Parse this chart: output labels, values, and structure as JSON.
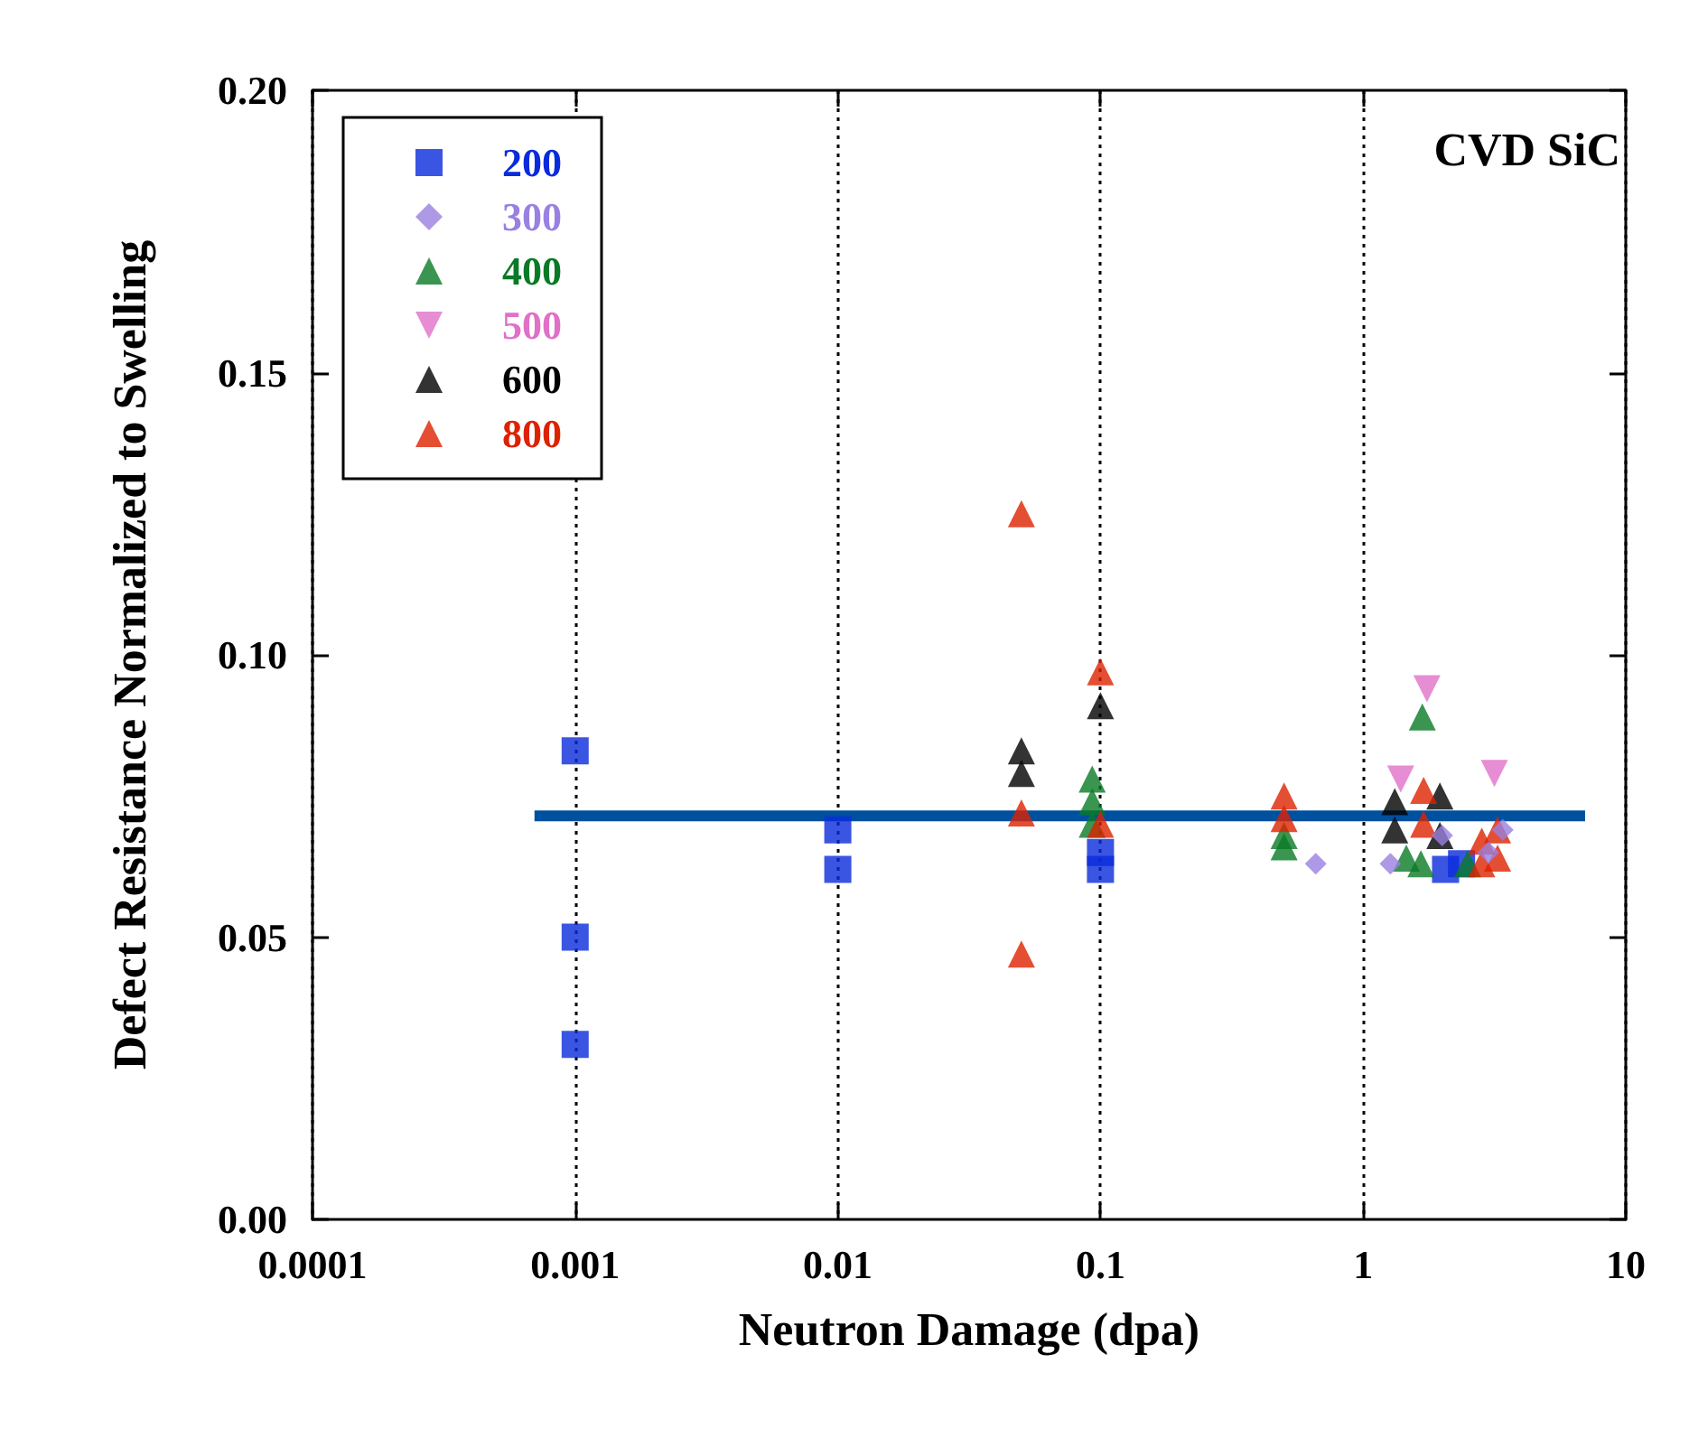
{
  "chart_data": {
    "type": "scatter",
    "xlabel": "Neutron Damage (dpa)",
    "ylabel": "Defect Resistance Normalized to Swelling",
    "annotations": [
      "CVD SiC"
    ],
    "log": "x",
    "grid": "x",
    "legend": "top left",
    "xlim": [
      0.0001,
      10
    ],
    "xticks": [
      0.0001,
      0.001,
      0.01,
      0.1,
      1,
      10
    ],
    "ylim": [
      0,
      0.2
    ],
    "yticks": [
      {
        "value": 0,
        "label": "0.00"
      },
      {
        "value": 0.05,
        "label": "0.05"
      },
      {
        "value": 0.1,
        "label": "0.10"
      },
      {
        "value": 0.15,
        "label": "0.15"
      },
      {
        "value": 0.2,
        "label": "0.20"
      }
    ],
    "series": [
      {
        "name": "200",
        "color": "#0a2bdc",
        "marker": "square",
        "x": [
          0.001,
          0.001,
          0.001,
          0.01,
          0.01,
          0.1,
          0.1,
          2.06,
          2.37
        ],
        "values": [
          0.083,
          0.05,
          0.031,
          0.069,
          0.062,
          0.065,
          0.062,
          0.062,
          0.063
        ]
      },
      {
        "name": "300",
        "color": "#9a80e0",
        "marker": "diamond",
        "x": [
          0.66,
          1.27,
          2.0,
          3.0,
          3.4
        ],
        "values": [
          0.063,
          0.063,
          0.068,
          0.065,
          0.069
        ]
      },
      {
        "name": "400",
        "color": "#097a26",
        "marker": "triangle",
        "x": [
          0.093,
          0.093,
          0.093,
          0.5,
          0.5,
          1.68,
          1.46,
          1.66,
          2.5
        ],
        "values": [
          0.078,
          0.074,
          0.07,
          0.068,
          0.066,
          0.089,
          0.064,
          0.063,
          0.063
        ]
      },
      {
        "name": "500",
        "color": "#e070c8",
        "marker": "triangle-down",
        "x": [
          1.75,
          1.39,
          3.16
        ],
        "values": [
          0.094,
          0.078,
          0.079
        ]
      },
      {
        "name": "600",
        "color": "#000000",
        "marker": "triangle",
        "x": [
          0.05,
          0.05,
          0.1,
          1.32,
          1.32,
          1.96,
          1.96
        ],
        "values": [
          0.083,
          0.079,
          0.091,
          0.074,
          0.069,
          0.075,
          0.068
        ]
      },
      {
        "name": "800",
        "color": "#dd2200",
        "marker": "triangle",
        "x": [
          0.05,
          0.05,
          0.05,
          0.1,
          0.1,
          0.5,
          0.5,
          1.7,
          1.7,
          2.83,
          2.83,
          3.25,
          3.25
        ],
        "values": [
          0.125,
          0.072,
          0.047,
          0.097,
          0.07,
          0.075,
          0.071,
          0.076,
          0.07,
          0.067,
          0.063,
          0.069,
          0.064
        ]
      },
      {
        "type": "line",
        "color": "#0050a0",
        "marker": "none",
        "x": [
          0.0007,
          7
        ],
        "values": [
          0.0715,
          0.0715
        ]
      }
    ]
  }
}
